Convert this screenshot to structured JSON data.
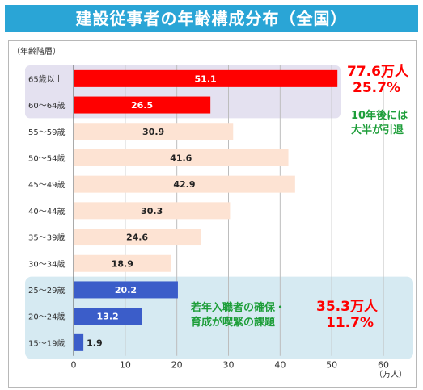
{
  "header": {
    "title": "建設従事者の年齢構成分布（全国）"
  },
  "colors": {
    "title_bg": "#2aa5d6",
    "senior_band": "#e4e1f0",
    "young_band": "#d6eaf2",
    "bar_senior": "#ff0000",
    "bar_middle": "#fde3d3",
    "bar_young": "#3b5dc9",
    "red_text": "#ff0000",
    "green_text": "#1e9e3a"
  },
  "chart_data": {
    "type": "bar",
    "orientation": "horizontal",
    "ylabel": "（年齢階層）",
    "xlabel": "（万人）",
    "xlim": [
      0,
      60
    ],
    "xticks": [
      0,
      10,
      20,
      30,
      40,
      50,
      60
    ],
    "grid": true,
    "categories": [
      "65歳以上",
      "60〜64歳",
      "55〜59歳",
      "50〜54歳",
      "45〜49歳",
      "40〜44歳",
      "35〜39歳",
      "30〜34歳",
      "25〜29歳",
      "20〜24歳",
      "15〜19歳"
    ],
    "values": [
      51.1,
      26.5,
      30.9,
      41.6,
      42.9,
      30.3,
      24.6,
      18.9,
      20.2,
      13.2,
      1.9
    ],
    "groups": [
      "senior",
      "senior",
      "middle",
      "middle",
      "middle",
      "middle",
      "middle",
      "middle",
      "young",
      "young",
      "young"
    ]
  },
  "annotations": {
    "senior_total": "77.6万人",
    "senior_pct": "25.7%",
    "senior_note_1": "10年後には",
    "senior_note_2": "大半が引退",
    "young_note_1": "若年入職者の確保・",
    "young_note_2": "育成が喫緊の課題",
    "young_total": "35.3万人",
    "young_pct": "11.7%"
  }
}
